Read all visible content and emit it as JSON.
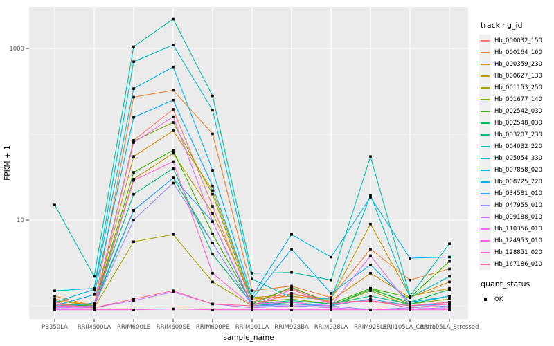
{
  "figure": {
    "background": "#FFFFFF",
    "panel_background": "#EBEBEB",
    "grid_color": "#FFFFFF",
    "axis_text_color": "#4D4D4D",
    "axis_title_color": "#000000",
    "point_color": "#000000",
    "legend_key_background": "#F0F0F0"
  },
  "axes": {
    "x_title": "sample_name",
    "y_title": "FPKM + 1",
    "y_tick_labels": [
      "1000",
      "10"
    ]
  },
  "legend": {
    "tracking_title": "tracking_id",
    "quant_title": "quant_status",
    "quant_items": [
      {
        "label": "OK",
        "shape": "filled-square",
        "color": "#000000"
      }
    ]
  },
  "chart_data": {
    "type": "line",
    "title": "",
    "xlabel": "sample_name",
    "ylabel": "FPKM + 1",
    "y_scale": "log10",
    "y_major_breaks": [
      10,
      1000
    ],
    "y_minor_breaks": [
      1,
      100
    ],
    "ylim": [
      0.7,
      3100
    ],
    "grid": true,
    "legend_position": "right",
    "point_shape": "filled-square",
    "categories": [
      "PB350LA",
      "RRIM600LA",
      "RRIM600LE",
      "RRIM600SE",
      "RRIM600PE",
      "RRIM901LA",
      "RRIM928BA",
      "RRIM928LA",
      "RRIM928LE",
      "RRII105LA_Control",
      "RRII105LA_Stressed"
    ],
    "series": [
      {
        "name": "Hb_000032_150",
        "color": "#F8766D",
        "values": [
          1.1,
          0.95,
          85,
          195,
          14.5,
          1.1,
          1.6,
          1.1,
          1.15,
          1.0,
          1.05
        ]
      },
      {
        "name": "Hb_000164_160",
        "color": "#EA8331",
        "values": [
          1.3,
          1.0,
          270,
          325,
          101,
          1.5,
          1.7,
          1.25,
          4.6,
          2.0,
          2.7
        ]
      },
      {
        "name": "Hb_000359_230",
        "color": "#D89000",
        "values": [
          1.2,
          1.0,
          55,
          110,
          22,
          1.2,
          1.3,
          1.15,
          2.4,
          1.25,
          1.9
        ]
      },
      {
        "name": "Hb_000627_130",
        "color": "#C09B00",
        "values": [
          1.15,
          1.0,
          30,
          60,
          12,
          1.25,
          1.35,
          1.2,
          9.0,
          1.3,
          1.6
        ]
      },
      {
        "name": "Hb_001153_250",
        "color": "#A3A500",
        "values": [
          1.0,
          0.95,
          5.6,
          6.8,
          1.9,
          1.0,
          1.05,
          1.0,
          1.5,
          1.0,
          1.1
        ]
      },
      {
        "name": "Hb_001677_140",
        "color": "#7CAE00",
        "values": [
          1.05,
          1.0,
          83,
          137,
          20,
          1.1,
          1.2,
          1.05,
          1.6,
          1.05,
          1.2
        ]
      },
      {
        "name": "Hb_002542_030",
        "color": "#39B600",
        "values": [
          1.0,
          1.0,
          36,
          65,
          6.9,
          1.05,
          1.65,
          1.05,
          1.6,
          1.25,
          3.3
        ]
      },
      {
        "name": "Hb_002548_030",
        "color": "#00BB4E",
        "values": [
          1.0,
          1.0,
          13,
          31,
          5.4,
          1.0,
          1.1,
          1.0,
          1.55,
          1.1,
          1.55
        ]
      },
      {
        "name": "Hb_003207_230",
        "color": "#00BF7D",
        "values": [
          1.0,
          1.05,
          20,
          40,
          4.0,
          1.05,
          1.15,
          1.05,
          1.3,
          1.05,
          1.3
        ]
      },
      {
        "name": "Hb_004032_220",
        "color": "#00C1A3",
        "values": [
          15,
          2.2,
          1050,
          2200,
          280,
          2.4,
          2.45,
          2.0,
          55,
          1.3,
          5.3
        ]
      },
      {
        "name": "Hb_005054_330",
        "color": "#00BFC4",
        "values": [
          1.5,
          1.6,
          700,
          1100,
          190,
          2.05,
          1.25,
          1.2,
          19.5,
          1.25,
          2.2
        ]
      },
      {
        "name": "Hb_007858_020",
        "color": "#00BAE0",
        "values": [
          1.1,
          1.55,
          340,
          610,
          38,
          1.3,
          6.8,
          3.7,
          18.5,
          3.6,
          3.7
        ]
      },
      {
        "name": "Hb_008725_220",
        "color": "#00B0F6",
        "values": [
          1.0,
          1.35,
          157,
          250,
          25,
          1.2,
          4.6,
          1.4,
          3.0,
          1.1,
          1.3
        ]
      },
      {
        "name": "Hb_034581_010",
        "color": "#35A2FF",
        "values": [
          0.95,
          1.08,
          13,
          31,
          9.6,
          1.0,
          1.05,
          1.0,
          1.2,
          1.0,
          1.05
        ]
      },
      {
        "name": "Hb_047955_010",
        "color": "#9590FF",
        "values": [
          0.95,
          1.0,
          10,
          27,
          5.4,
          1.0,
          1.0,
          1.0,
          0.9,
          0.95,
          1.0
        ]
      },
      {
        "name": "Hb_099188_010",
        "color": "#C77CFF",
        "values": [
          0.95,
          0.95,
          1.15,
          1.45,
          1.05,
          0.95,
          1.0,
          0.95,
          0.9,
          0.92,
          0.95
        ]
      },
      {
        "name": "Hb_110356_010",
        "color": "#E76BF3",
        "values": [
          1.0,
          0.98,
          80,
          160,
          9.6,
          1.05,
          1.1,
          1.0,
          3.85,
          1.0,
          1.1
        ]
      },
      {
        "name": "Hb_124953_010",
        "color": "#FA62DB",
        "values": [
          0.9,
          0.9,
          0.9,
          0.92,
          0.9,
          0.9,
          0.9,
          0.9,
          0.9,
          0.9,
          0.9
        ]
      },
      {
        "name": "Hb_128851_020",
        "color": "#FF62BC",
        "values": [
          1.0,
          0.95,
          29,
          48,
          2.4,
          1.0,
          1.55,
          1.05,
          1.15,
          0.95,
          1.05
        ]
      },
      {
        "name": "Hb_167186_010",
        "color": "#FF6A98",
        "values": [
          1.05,
          0.95,
          1.2,
          1.5,
          1.05,
          1.0,
          1.4,
          1.1,
          1.13,
          1.0,
          1.1
        ]
      }
    ],
    "quant_status": "OK"
  }
}
